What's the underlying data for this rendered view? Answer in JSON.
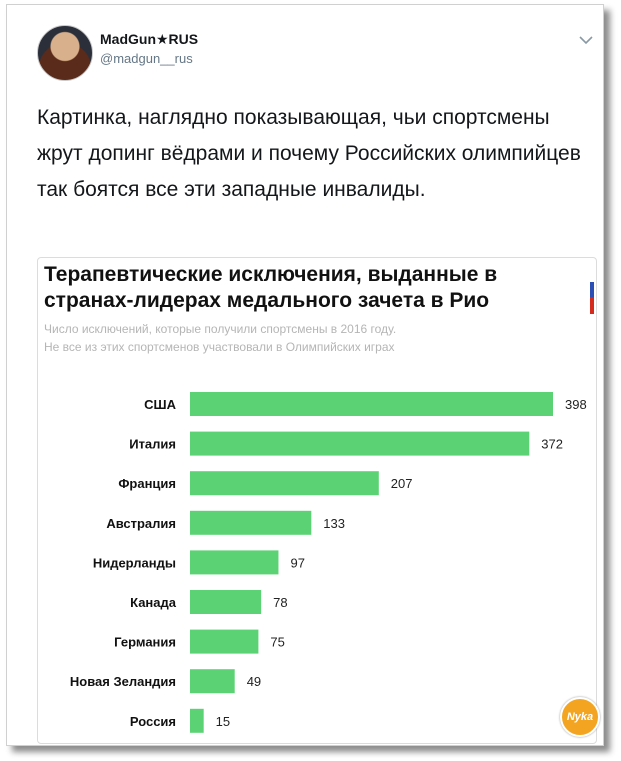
{
  "tweet": {
    "author_name": "MadGun★RUS",
    "author_handle": "@madgun__rus",
    "text": "Картинка, наглядно показывающая, чьи спортсмены жрут допинг вёдрами и почему Российских олимпийцев так боятся все эти западные инвалиды."
  },
  "icons": {
    "menu": "chevron-down-icon",
    "avatar": "avatar"
  },
  "watermark": {
    "text": "Nyka"
  },
  "colors": {
    "bar": "#5bd374",
    "text": "#14171a",
    "handle": "#657786",
    "subtitle": "#b5b5b5"
  },
  "chart_data": {
    "type": "bar",
    "orientation": "horizontal",
    "title": "Терапевтические исключения, выданные в странах-лидерах медального зачета в Рио",
    "subtitle_line1": "Число исключений, которые получили спортсмены в 2016 году.",
    "subtitle_line2": "Не все из этих спортсменов участвовали в Олимпийских играх",
    "categories": [
      "США",
      "Италия",
      "Франция",
      "Австралия",
      "Нидерланды",
      "Канада",
      "Германия",
      "Новая Зеландия",
      "Россия"
    ],
    "values": [
      398,
      372,
      207,
      133,
      97,
      78,
      75,
      49,
      15
    ],
    "xlim": [
      0,
      398
    ],
    "grid": false,
    "legend": "none"
  }
}
